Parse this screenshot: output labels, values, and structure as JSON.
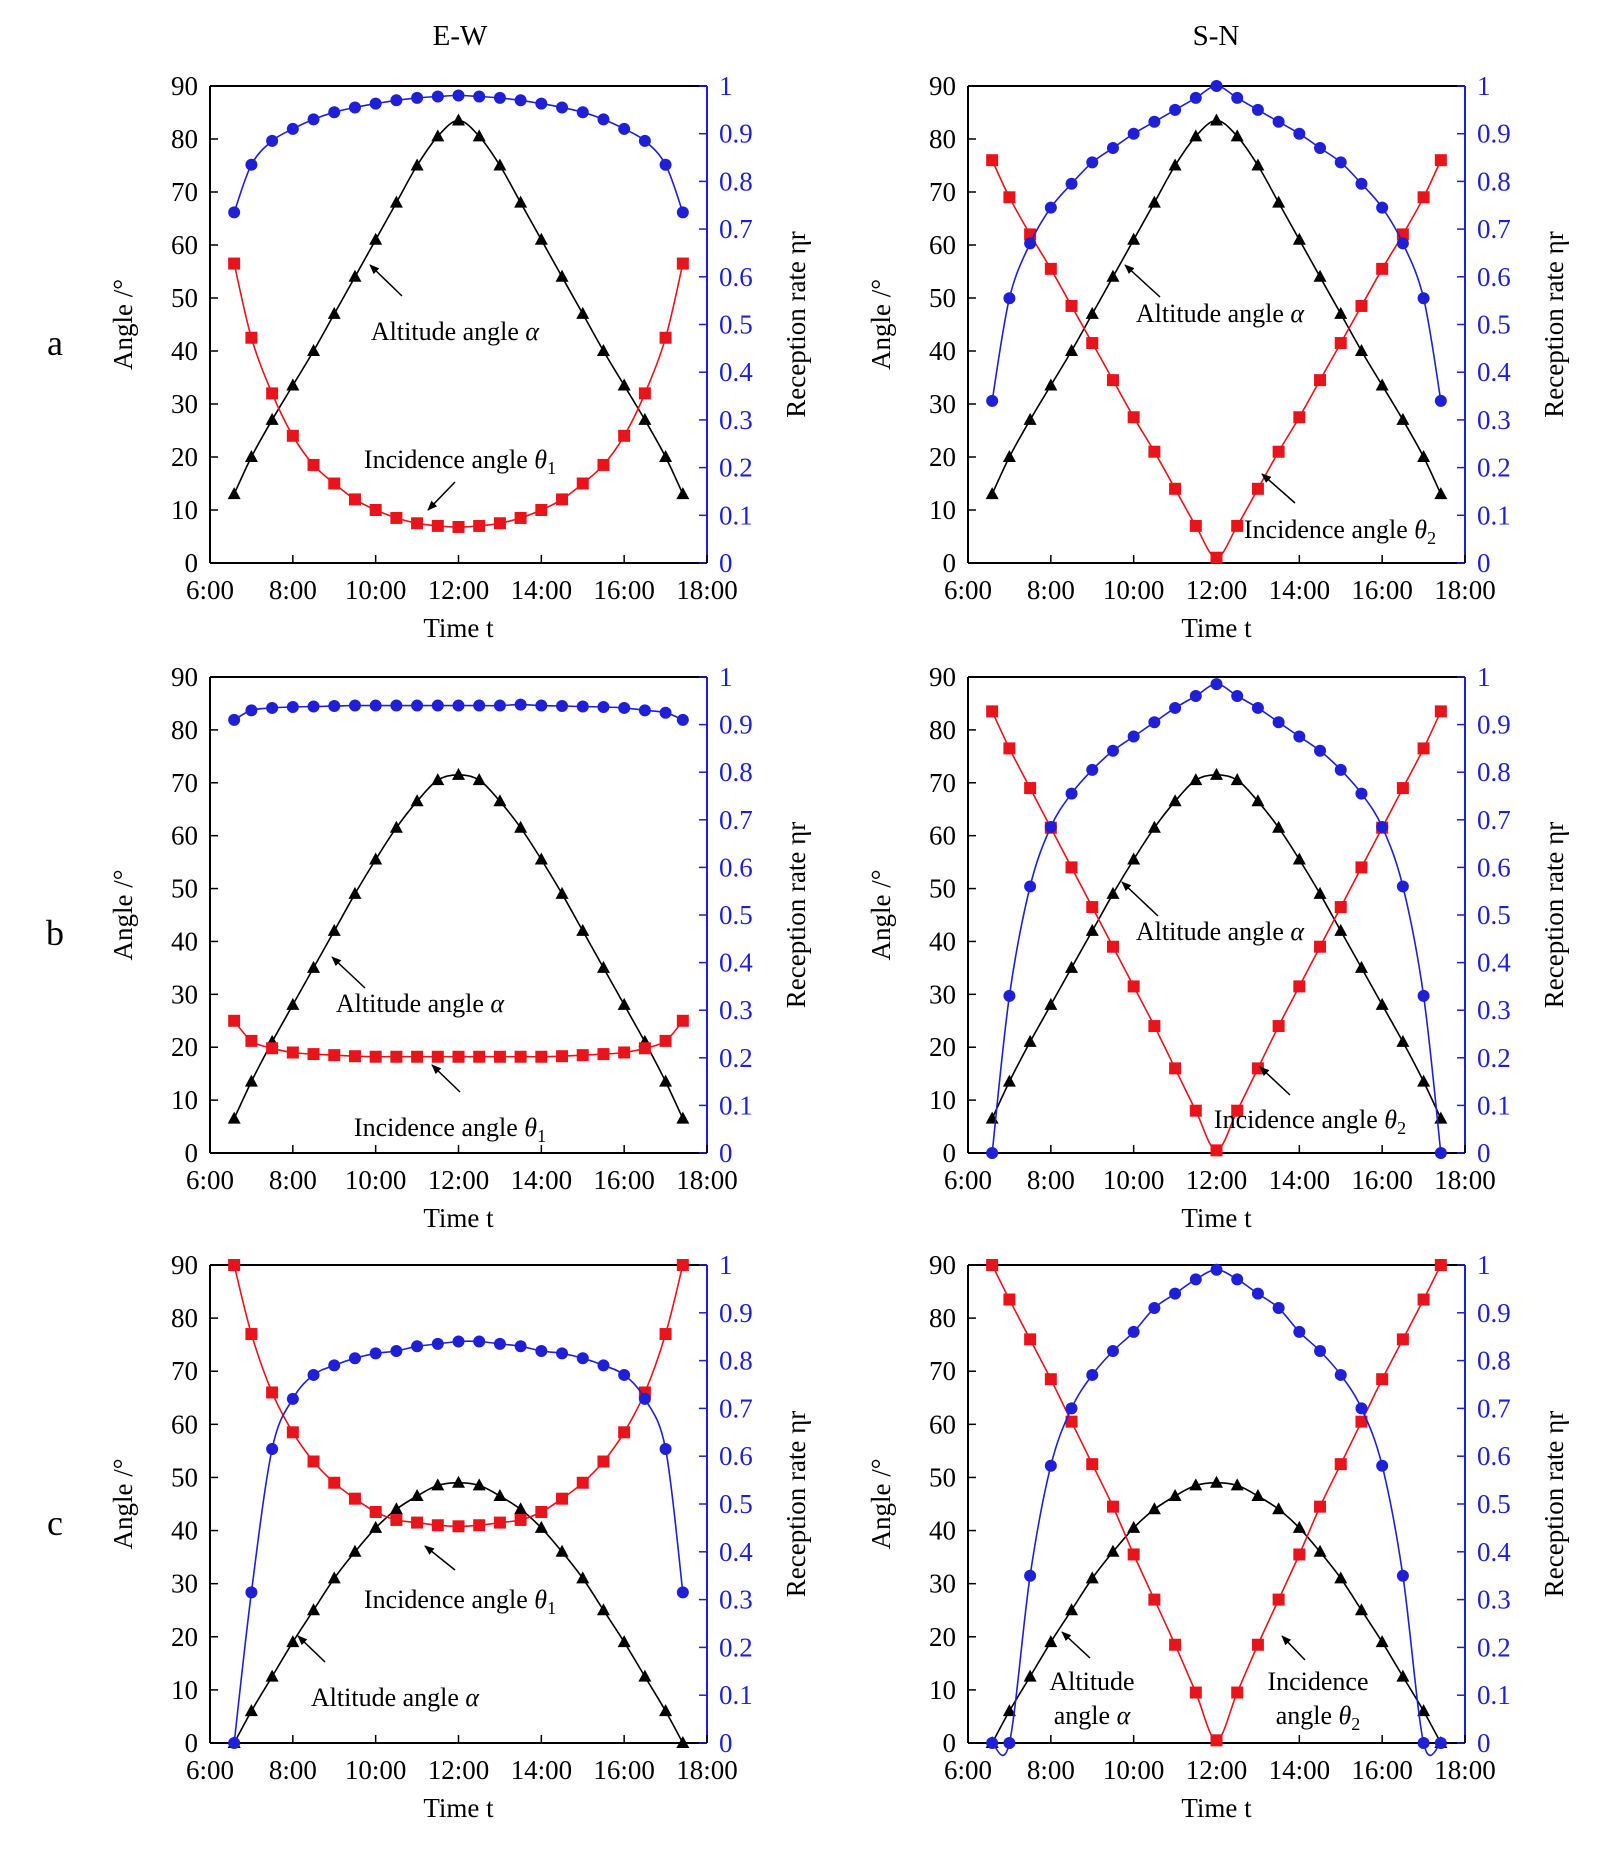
{
  "figure": {
    "column_titles": [
      "E-W",
      "S-N"
    ],
    "row_labels": [
      "a",
      "b",
      "c"
    ]
  },
  "colors": {
    "altitude": "#000000",
    "incidence": "#e8141b",
    "reception": "#1f1fd6",
    "axis": "#000000",
    "right_axis": "#1f1fd6"
  },
  "chart_data": [
    {
      "type": "line",
      "row": "a",
      "column": "E-W",
      "xlabel": "Time t",
      "ylabel": "Angle /°",
      "y2label": "Reception rate ηr",
      "xlim": [
        "6:00",
        "18:00"
      ],
      "ylim": [
        0,
        90
      ],
      "y2lim": [
        0,
        1
      ],
      "x_ticks": [
        "6:00",
        "8:00",
        "10:00",
        "12:00",
        "14:00",
        "16:00",
        "18:00"
      ],
      "y_ticks": [
        0,
        10,
        20,
        30,
        40,
        50,
        60,
        70,
        80,
        90
      ],
      "y2_ticks": [
        0,
        0.1,
        0.2,
        0.3,
        0.4,
        0.5,
        0.6,
        0.7,
        0.8,
        0.9,
        1
      ],
      "x": [
        "6:35",
        "7:00",
        "7:30",
        "8:00",
        "8:30",
        "9:00",
        "9:30",
        "10:00",
        "10:30",
        "11:00",
        "11:30",
        "12:00",
        "12:30",
        "13:00",
        "13:30",
        "14:00",
        "14:30",
        "15:00",
        "15:30",
        "16:00",
        "16:30",
        "17:00",
        "17:25"
      ],
      "series": [
        {
          "name": "Altitude angle α",
          "axis": "left",
          "marker": "triangle",
          "values": [
            13,
            20,
            27,
            33.5,
            40,
            47,
            54,
            61,
            68,
            75,
            80.5,
            83.5,
            80.5,
            75,
            68,
            61,
            54,
            47,
            40,
            33.5,
            27,
            20,
            13
          ]
        },
        {
          "name": "Incidence angle θ1",
          "axis": "left",
          "marker": "square",
          "values": [
            56.5,
            42.5,
            32,
            24,
            18.5,
            15,
            12,
            10,
            8.5,
            7.5,
            7,
            6.8,
            7,
            7.5,
            8.5,
            10,
            12,
            15,
            18.5,
            24,
            32,
            42.5,
            56.5
          ]
        },
        {
          "name": "Reception rate ηr",
          "axis": "right",
          "marker": "circle",
          "values": [
            0.735,
            0.835,
            0.885,
            0.91,
            0.93,
            0.945,
            0.955,
            0.963,
            0.97,
            0.975,
            0.978,
            0.98,
            0.978,
            0.975,
            0.97,
            0.963,
            0.955,
            0.945,
            0.93,
            0.91,
            0.885,
            0.835,
            0.735
          ]
        }
      ],
      "annotations": [
        {
          "label": "Altitude angle",
          "symbol": "α"
        },
        {
          "label": "Incidence angle",
          "symbol": "θ",
          "subscript": "1"
        }
      ]
    },
    {
      "type": "line",
      "row": "a",
      "column": "S-N",
      "xlabel": "Time t",
      "ylabel": "Angle /°",
      "y2label": "Reception rate ηr",
      "xlim": [
        "6:00",
        "18:00"
      ],
      "ylim": [
        0,
        90
      ],
      "y2lim": [
        0,
        1
      ],
      "x_ticks": [
        "6:00",
        "8:00",
        "10:00",
        "12:00",
        "14:00",
        "16:00",
        "18:00"
      ],
      "y_ticks": [
        0,
        10,
        20,
        30,
        40,
        50,
        60,
        70,
        80,
        90
      ],
      "y2_ticks": [
        0,
        0.1,
        0.2,
        0.3,
        0.4,
        0.5,
        0.6,
        0.7,
        0.8,
        0.9,
        1
      ],
      "x": [
        "6:35",
        "7:00",
        "7:30",
        "8:00",
        "8:30",
        "9:00",
        "9:30",
        "10:00",
        "10:30",
        "11:00",
        "11:30",
        "12:00",
        "12:30",
        "13:00",
        "13:30",
        "14:00",
        "14:30",
        "15:00",
        "15:30",
        "16:00",
        "16:30",
        "17:00",
        "17:25"
      ],
      "series": [
        {
          "name": "Altitude angle α",
          "axis": "left",
          "marker": "triangle",
          "values": [
            13,
            20,
            27,
            33.5,
            40,
            47,
            54,
            61,
            68,
            75,
            80.5,
            83.5,
            80.5,
            75,
            68,
            61,
            54,
            47,
            40,
            33.5,
            27,
            20,
            13
          ]
        },
        {
          "name": "Incidence angle θ2",
          "axis": "left",
          "marker": "square",
          "values": [
            76,
            69,
            62,
            55.5,
            48.5,
            41.5,
            34.5,
            27.5,
            21,
            14,
            7,
            1,
            7,
            14,
            21,
            27.5,
            34.5,
            41.5,
            48.5,
            55.5,
            62,
            69,
            76
          ]
        },
        {
          "name": "Reception rate ηr",
          "axis": "right",
          "marker": "circle",
          "values": [
            0.34,
            0.555,
            0.67,
            0.745,
            0.795,
            0.84,
            0.87,
            0.9,
            0.925,
            0.95,
            0.975,
            1.0,
            0.975,
            0.95,
            0.925,
            0.9,
            0.87,
            0.84,
            0.795,
            0.745,
            0.67,
            0.555,
            0.34
          ]
        }
      ],
      "annotations": [
        {
          "label": "Altitude angle",
          "symbol": "α"
        },
        {
          "label": "Incidence angle",
          "symbol": "θ",
          "subscript": "2"
        }
      ]
    },
    {
      "type": "line",
      "row": "b",
      "column": "E-W",
      "xlabel": "Time t",
      "ylabel": "Angle /°",
      "y2label": "Reception rate ηr",
      "xlim": [
        "6:00",
        "18:00"
      ],
      "ylim": [
        0,
        90
      ],
      "y2lim": [
        0,
        1
      ],
      "x_ticks": [
        "6:00",
        "8:00",
        "10:00",
        "12:00",
        "14:00",
        "16:00",
        "18:00"
      ],
      "y_ticks": [
        0,
        10,
        20,
        30,
        40,
        50,
        60,
        70,
        80,
        90
      ],
      "y2_ticks": [
        0,
        0.1,
        0.2,
        0.3,
        0.4,
        0.5,
        0.6,
        0.7,
        0.8,
        0.9,
        1
      ],
      "x": [
        "6:35",
        "7:00",
        "7:30",
        "8:00",
        "8:30",
        "9:00",
        "9:30",
        "10:00",
        "10:30",
        "11:00",
        "11:30",
        "12:00",
        "12:30",
        "13:00",
        "13:30",
        "14:00",
        "14:30",
        "15:00",
        "15:30",
        "16:00",
        "16:30",
        "17:00",
        "17:25"
      ],
      "series": [
        {
          "name": "Altitude angle α",
          "axis": "left",
          "marker": "triangle",
          "values": [
            6.5,
            13.5,
            21,
            28,
            35,
            42,
            49,
            55.5,
            61.5,
            66.5,
            70.5,
            71.5,
            70.5,
            66.5,
            61.5,
            55.5,
            49,
            42,
            35,
            28,
            21,
            13.5,
            6.5
          ]
        },
        {
          "name": "Incidence angle θ1",
          "axis": "left",
          "marker": "square",
          "values": [
            25,
            21.2,
            19.8,
            19,
            18.7,
            18.5,
            18.3,
            18.2,
            18.2,
            18.2,
            18.2,
            18.2,
            18.2,
            18.2,
            18.2,
            18.2,
            18.3,
            18.5,
            18.7,
            19,
            19.8,
            21.2,
            25
          ]
        },
        {
          "name": "Reception rate ηr",
          "axis": "right",
          "marker": "circle",
          "values": [
            0.91,
            0.93,
            0.935,
            0.937,
            0.938,
            0.939,
            0.94,
            0.94,
            0.94,
            0.94,
            0.94,
            0.94,
            0.94,
            0.94,
            0.942,
            0.94,
            0.939,
            0.938,
            0.937,
            0.935,
            0.93,
            0.925,
            0.91
          ]
        }
      ],
      "annotations": [
        {
          "label": "Altitude angle",
          "symbol": "α"
        },
        {
          "label": "Incidence angle",
          "symbol": "θ",
          "subscript": "1"
        }
      ]
    },
    {
      "type": "line",
      "row": "b",
      "column": "S-N",
      "xlabel": "Time t",
      "ylabel": "Angle /°",
      "y2label": "Reception rate ηr",
      "xlim": [
        "6:00",
        "18:00"
      ],
      "ylim": [
        0,
        90
      ],
      "y2lim": [
        0,
        1
      ],
      "x_ticks": [
        "6:00",
        "8:00",
        "10:00",
        "12:00",
        "14:00",
        "16:00",
        "18:00"
      ],
      "y_ticks": [
        0,
        10,
        20,
        30,
        40,
        50,
        60,
        70,
        80,
        90
      ],
      "y2_ticks": [
        0,
        0.1,
        0.2,
        0.3,
        0.4,
        0.5,
        0.6,
        0.7,
        0.8,
        0.9,
        1
      ],
      "x": [
        "6:35",
        "7:00",
        "7:30",
        "8:00",
        "8:30",
        "9:00",
        "9:30",
        "10:00",
        "10:30",
        "11:00",
        "11:30",
        "12:00",
        "12:30",
        "13:00",
        "13:30",
        "14:00",
        "14:30",
        "15:00",
        "15:30",
        "16:00",
        "16:30",
        "17:00",
        "17:25"
      ],
      "series": [
        {
          "name": "Altitude angle α",
          "axis": "left",
          "marker": "triangle",
          "values": [
            6.5,
            13.5,
            21,
            28,
            35,
            42,
            49,
            55.5,
            61.5,
            66.5,
            70.5,
            71.5,
            70.5,
            66.5,
            61.5,
            55.5,
            49,
            42,
            35,
            28,
            21,
            13.5,
            6.5
          ]
        },
        {
          "name": "Incidence angle θ2",
          "axis": "left",
          "marker": "square",
          "values": [
            83.5,
            76.5,
            69,
            61.5,
            54,
            46.5,
            39,
            31.5,
            24,
            16,
            8,
            0.5,
            8,
            16,
            24,
            31.5,
            39,
            46.5,
            54,
            61.5,
            69,
            76.5,
            83.5
          ]
        },
        {
          "name": "Reception rate ηr",
          "axis": "right",
          "marker": "circle",
          "values": [
            0.0,
            0.33,
            0.56,
            0.685,
            0.755,
            0.805,
            0.845,
            0.875,
            0.905,
            0.935,
            0.96,
            0.985,
            0.96,
            0.935,
            0.905,
            0.875,
            0.845,
            0.805,
            0.755,
            0.685,
            0.56,
            0.33,
            0.0
          ]
        }
      ],
      "annotations": [
        {
          "label": "Altitude angle",
          "symbol": "α"
        },
        {
          "label": "Incidence angle",
          "symbol": "θ",
          "subscript": "2"
        }
      ]
    },
    {
      "type": "line",
      "row": "c",
      "column": "E-W",
      "xlabel": "Time t",
      "ylabel": "Angle /°",
      "y2label": "Reception rate ηr",
      "xlim": [
        "6:00",
        "18:00"
      ],
      "ylim": [
        0,
        90
      ],
      "y2lim": [
        0,
        1
      ],
      "x_ticks": [
        "6:00",
        "8:00",
        "10:00",
        "12:00",
        "14:00",
        "16:00",
        "18:00"
      ],
      "y_ticks": [
        0,
        10,
        20,
        30,
        40,
        50,
        60,
        70,
        80,
        90
      ],
      "y2_ticks": [
        0,
        0.1,
        0.2,
        0.3,
        0.4,
        0.5,
        0.6,
        0.7,
        0.8,
        0.9,
        1
      ],
      "x": [
        "6:35",
        "7:00",
        "7:30",
        "8:00",
        "8:30",
        "9:00",
        "9:30",
        "10:00",
        "10:30",
        "11:00",
        "11:30",
        "12:00",
        "12:30",
        "13:00",
        "13:30",
        "14:00",
        "14:30",
        "15:00",
        "15:30",
        "16:00",
        "16:30",
        "17:00",
        "17:25"
      ],
      "series": [
        {
          "name": "Altitude angle α",
          "axis": "left",
          "marker": "triangle",
          "values": [
            0,
            6,
            12.5,
            19,
            25,
            31,
            36,
            40.5,
            44,
            46.5,
            48.5,
            49,
            48.5,
            46.5,
            44,
            40.5,
            36,
            31,
            25,
            19,
            12.5,
            6,
            0
          ]
        },
        {
          "name": "Incidence angle θ1",
          "axis": "left",
          "marker": "square",
          "values": [
            90,
            77,
            66,
            58.5,
            53,
            49,
            46,
            43.5,
            42,
            41.5,
            41,
            40.8,
            41,
            41.5,
            42,
            43.5,
            46,
            49,
            53,
            58.5,
            66,
            77,
            90
          ]
        },
        {
          "name": "Reception rate ηr",
          "axis": "right",
          "marker": "circle",
          "values": [
            0.0,
            0.315,
            0.615,
            0.72,
            0.77,
            0.79,
            0.805,
            0.815,
            0.82,
            0.83,
            0.835,
            0.84,
            0.84,
            0.835,
            0.83,
            0.82,
            0.815,
            0.805,
            0.79,
            0.77,
            0.72,
            0.615,
            0.315
          ]
        }
      ],
      "annotations": [
        {
          "label": "Incidence angle",
          "symbol": "θ",
          "subscript": "1"
        },
        {
          "label": "Altitude angle",
          "symbol": "α"
        }
      ]
    },
    {
      "type": "line",
      "row": "c",
      "column": "S-N",
      "xlabel": "Time t",
      "ylabel": "Angle /°",
      "y2label": "Reception rate ηr",
      "xlim": [
        "6:00",
        "18:00"
      ],
      "ylim": [
        0,
        90
      ],
      "y2lim": [
        0,
        1
      ],
      "x_ticks": [
        "6:00",
        "8:00",
        "10:00",
        "12:00",
        "14:00",
        "16:00",
        "18:00"
      ],
      "y_ticks": [
        0,
        10,
        20,
        30,
        40,
        50,
        60,
        70,
        80,
        90
      ],
      "y2_ticks": [
        0,
        0.1,
        0.2,
        0.3,
        0.4,
        0.5,
        0.6,
        0.7,
        0.8,
        0.9,
        1
      ],
      "x": [
        "6:35",
        "7:00",
        "7:30",
        "8:00",
        "8:30",
        "9:00",
        "9:30",
        "10:00",
        "10:30",
        "11:00",
        "11:30",
        "12:00",
        "12:30",
        "13:00",
        "13:30",
        "14:00",
        "14:30",
        "15:00",
        "15:30",
        "16:00",
        "16:30",
        "17:00",
        "17:25"
      ],
      "series": [
        {
          "name": "Altitude angle α",
          "axis": "left",
          "marker": "triangle",
          "values": [
            0,
            6,
            12.5,
            19,
            25,
            31,
            36,
            40.5,
            44,
            46.5,
            48.5,
            49,
            48.5,
            46.5,
            44,
            40.5,
            36,
            31,
            25,
            19,
            12.5,
            6,
            0
          ]
        },
        {
          "name": "Incidence angle θ2",
          "axis": "left",
          "marker": "square",
          "values": [
            90,
            83.5,
            76,
            68.5,
            60.5,
            52.5,
            44.5,
            35.5,
            27,
            18.5,
            9.5,
            0.5,
            9.5,
            18.5,
            27,
            35.5,
            44.5,
            52.5,
            60.5,
            68.5,
            76,
            83.5,
            90
          ]
        },
        {
          "name": "Reception rate ηr",
          "axis": "right",
          "marker": "circle",
          "values": [
            0.0,
            0.0,
            0.35,
            0.58,
            0.7,
            0.77,
            0.82,
            0.86,
            0.91,
            0.94,
            0.97,
            0.99,
            0.97,
            0.94,
            0.91,
            0.86,
            0.82,
            0.77,
            0.7,
            0.58,
            0.35,
            0.0,
            0.0
          ]
        }
      ],
      "annotations": [
        {
          "label": "Altitude",
          "label2": "angle",
          "symbol": "α"
        },
        {
          "label": "Incidence",
          "label2": "angle",
          "symbol": "θ",
          "subscript": "2"
        }
      ]
    }
  ]
}
